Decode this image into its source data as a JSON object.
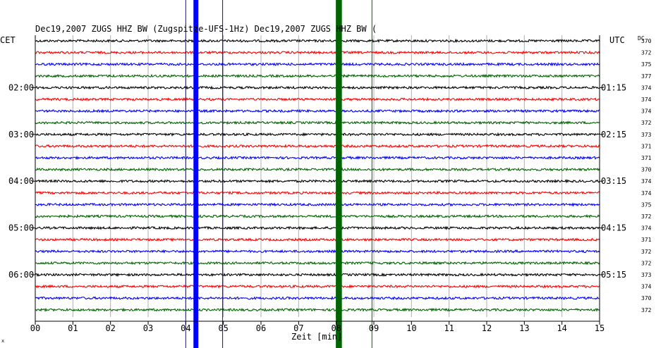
{
  "chart_data": {
    "type": "line",
    "title": "Dec19,2007   ZUGS HHZ BW (Zugspitze-UFS-1Hz) Dec19,2007   ZUGS HHZ BW (",
    "left_axis_label": "CET",
    "right_axis_label": "UTC",
    "dc_label": "DC",
    "xlabel": "Zeit [min]",
    "xlim": [
      0,
      15
    ],
    "x_ticks": [
      "00",
      "01",
      "02",
      "03",
      "04",
      "05",
      "06",
      "07",
      "08",
      "09",
      "10",
      "11",
      "12",
      "13",
      "14",
      "15"
    ],
    "left_time_labels": [
      {
        "row": 4,
        "label": "02:00"
      },
      {
        "row": 8,
        "label": "03:00"
      },
      {
        "row": 12,
        "label": "04:00"
      },
      {
        "row": 16,
        "label": "05:00"
      },
      {
        "row": 20,
        "label": "06:00"
      }
    ],
    "right_time_labels": [
      {
        "row": 4,
        "label": "01:15"
      },
      {
        "row": 8,
        "label": "02:15"
      },
      {
        "row": 12,
        "label": "03:15"
      },
      {
        "row": 16,
        "label": "04:15"
      },
      {
        "row": 20,
        "label": "05:15"
      }
    ],
    "trace_colors": [
      "#000000",
      "#ff0000",
      "#0000ff",
      "#006400"
    ],
    "dc_values": [
      370,
      372,
      375,
      377,
      374,
      374,
      374,
      372,
      373,
      371,
      371,
      370,
      374,
      374,
      375,
      372,
      374,
      371,
      372,
      372,
      373,
      374,
      370,
      372
    ],
    "events": [
      {
        "minute": 4.27,
        "color": "#0000ff",
        "kind": "band",
        "width_min": 0.13
      },
      {
        "minute": 4.0,
        "color": "#0000ff",
        "kind": "line"
      },
      {
        "minute": 4.98,
        "color": "#0000ff",
        "kind": "line"
      },
      {
        "minute": 8.07,
        "color": "#006400",
        "kind": "band",
        "width_min": 0.16
      },
      {
        "minute": 8.95,
        "color": "#006400",
        "kind": "line"
      }
    ],
    "grid": true
  }
}
